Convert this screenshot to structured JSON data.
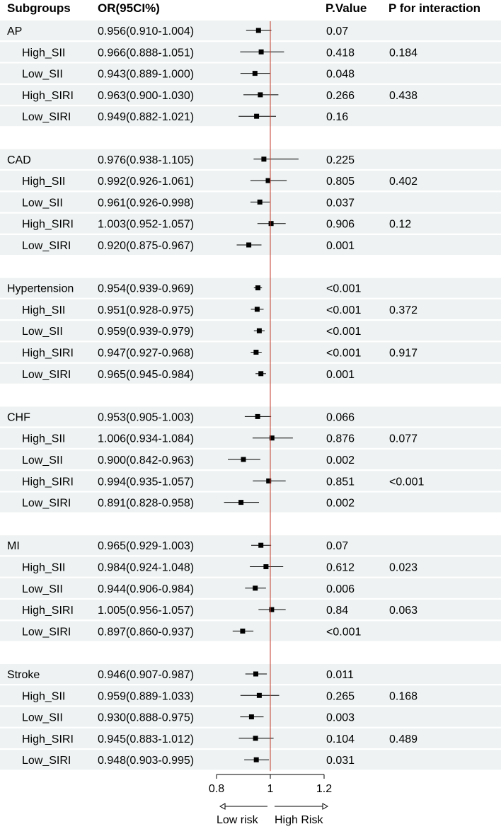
{
  "header": {
    "subgroups": "Subgroups",
    "or_ci": "OR(95CI%)",
    "p_value": "P.Value",
    "p_interaction": "P for interaction"
  },
  "axis": {
    "ticks": [
      0.8,
      1,
      1.2
    ],
    "tick_labels": [
      "0.8",
      "1",
      "1.2"
    ],
    "range": [
      0.8,
      1.2
    ],
    "reference": 1,
    "low_label": "Low risk",
    "high_label": "High Risk"
  },
  "colors": {
    "stripe": "#eef2f2",
    "reference_line": "#c0392b",
    "marker": "#000000"
  },
  "chart_data": {
    "type": "forest",
    "x_range": [
      0.8,
      1.2
    ],
    "reference": 1,
    "groups": [
      {
        "name": "AP",
        "or": 0.956,
        "lo": 0.91,
        "hi": 1.004,
        "ci_text": "0.956(0.910-1.004)",
        "p": "0.07",
        "rows": [
          {
            "label": "High_SII",
            "or": 0.966,
            "lo": 0.888,
            "hi": 1.051,
            "ci_text": "0.966(0.888-1.051)",
            "p": "0.418",
            "p_int": "0.184"
          },
          {
            "label": "Low_SII",
            "or": 0.943,
            "lo": 0.889,
            "hi": 1.0,
            "ci_text": "0.943(0.889-1.000)",
            "p": "0.048",
            "p_int": ""
          },
          {
            "label": "High_SIRI",
            "or": 0.963,
            "lo": 0.9,
            "hi": 1.03,
            "ci_text": "0.963(0.900-1.030)",
            "p": "0.266",
            "p_int": "0.438"
          },
          {
            "label": "Low_SIRI",
            "or": 0.949,
            "lo": 0.882,
            "hi": 1.021,
            "ci_text": "0.949(0.882-1.021)",
            "p": "0.16",
            "p_int": ""
          }
        ]
      },
      {
        "name": "CAD",
        "or": 0.976,
        "lo": 0.938,
        "hi": 1.105,
        "ci_text": "0.976(0.938-1.105)",
        "p": "0.225",
        "rows": [
          {
            "label": "High_SII",
            "or": 0.992,
            "lo": 0.926,
            "hi": 1.061,
            "ci_text": "0.992(0.926-1.061)",
            "p": "0.805",
            "p_int": "0.402"
          },
          {
            "label": "Low_SII",
            "or": 0.961,
            "lo": 0.926,
            "hi": 0.998,
            "ci_text": "0.961(0.926-0.998)",
            "p": "0.037",
            "p_int": ""
          },
          {
            "label": "High_SIRI",
            "or": 1.003,
            "lo": 0.952,
            "hi": 1.057,
            "ci_text": "1.003(0.952-1.057)",
            "p": "0.906",
            "p_int": "0.12"
          },
          {
            "label": "Low_SIRI",
            "or": 0.92,
            "lo": 0.875,
            "hi": 0.967,
            "ci_text": "0.920(0.875-0.967)",
            "p": "0.001",
            "p_int": ""
          }
        ]
      },
      {
        "name": "Hypertension",
        "or": 0.954,
        "lo": 0.939,
        "hi": 0.969,
        "ci_text": "0.954(0.939-0.969)",
        "p": "<0.001",
        "rows": [
          {
            "label": "High_SII",
            "or": 0.951,
            "lo": 0.928,
            "hi": 0.975,
            "ci_text": "0.951(0.928-0.975)",
            "p": "<0.001",
            "p_int": "0.372"
          },
          {
            "label": "Low_SII",
            "or": 0.959,
            "lo": 0.939,
            "hi": 0.979,
            "ci_text": "0.959(0.939-0.979)",
            "p": "<0.001",
            "p_int": ""
          },
          {
            "label": "High_SIRI",
            "or": 0.947,
            "lo": 0.927,
            "hi": 0.968,
            "ci_text": "0.947(0.927-0.968)",
            "p": "<0.001",
            "p_int": "0.917"
          },
          {
            "label": "Low_SIRI",
            "or": 0.965,
            "lo": 0.945,
            "hi": 0.984,
            "ci_text": "0.965(0.945-0.984)",
            "p": "0.001",
            "p_int": ""
          }
        ]
      },
      {
        "name": "CHF",
        "or": 0.953,
        "lo": 0.905,
        "hi": 1.003,
        "ci_text": "0.953(0.905-1.003)",
        "p": "0.066",
        "rows": [
          {
            "label": "High_SII",
            "or": 1.006,
            "lo": 0.934,
            "hi": 1.084,
            "ci_text": "1.006(0.934-1.084)",
            "p": "0.876",
            "p_int": "0.077"
          },
          {
            "label": "Low_SII",
            "or": 0.9,
            "lo": 0.842,
            "hi": 0.963,
            "ci_text": "0.900(0.842-0.963)",
            "p": "0.002",
            "p_int": ""
          },
          {
            "label": "High_SIRI",
            "or": 0.994,
            "lo": 0.935,
            "hi": 1.057,
            "ci_text": "0.994(0.935-1.057)",
            "p": "0.851",
            "p_int": "<0.001"
          },
          {
            "label": "Low_SIRI",
            "or": 0.891,
            "lo": 0.828,
            "hi": 0.958,
            "ci_text": "0.891(0.828-0.958)",
            "p": "0.002",
            "p_int": ""
          }
        ]
      },
      {
        "name": "MI",
        "or": 0.965,
        "lo": 0.929,
        "hi": 1.003,
        "ci_text": "0.965(0.929-1.003)",
        "p": "0.07",
        "rows": [
          {
            "label": "High_SII",
            "or": 0.984,
            "lo": 0.924,
            "hi": 1.048,
            "ci_text": "0.984(0.924-1.048)",
            "p": "0.612",
            "p_int": "0.023"
          },
          {
            "label": "Low_SII",
            "or": 0.944,
            "lo": 0.906,
            "hi": 0.984,
            "ci_text": "0.944(0.906-0.984)",
            "p": "0.006",
            "p_int": ""
          },
          {
            "label": "High_SIRI",
            "or": 1.005,
            "lo": 0.956,
            "hi": 1.057,
            "ci_text": "1.005(0.956-1.057)",
            "p": "0.84",
            "p_int": "0.063"
          },
          {
            "label": "Low_SIRI",
            "or": 0.897,
            "lo": 0.86,
            "hi": 0.937,
            "ci_text": "0.897(0.860-0.937)",
            "p": "<0.001",
            "p_int": ""
          }
        ]
      },
      {
        "name": "Stroke",
        "or": 0.946,
        "lo": 0.907,
        "hi": 0.987,
        "ci_text": "0.946(0.907-0.987)",
        "p": "0.011",
        "rows": [
          {
            "label": "High_SII",
            "or": 0.959,
            "lo": 0.889,
            "hi": 1.033,
            "ci_text": "0.959(0.889-1.033)",
            "p": "0.265",
            "p_int": "0.168"
          },
          {
            "label": "Low_SII",
            "or": 0.93,
            "lo": 0.888,
            "hi": 0.975,
            "ci_text": "0.930(0.888-0.975)",
            "p": "0.003",
            "p_int": ""
          },
          {
            "label": "High_SIRI",
            "or": 0.945,
            "lo": 0.883,
            "hi": 1.012,
            "ci_text": "0.945(0.883-1.012)",
            "p": "0.104",
            "p_int": "0.489"
          },
          {
            "label": "Low_SIRI",
            "or": 0.948,
            "lo": 0.903,
            "hi": 0.995,
            "ci_text": "0.948(0.903-0.995)",
            "p": "0.031",
            "p_int": ""
          }
        ]
      }
    ]
  }
}
